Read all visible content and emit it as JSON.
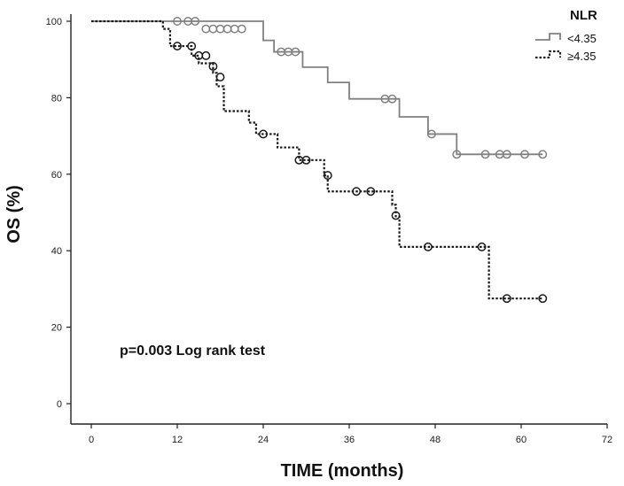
{
  "chart_data": {
    "type": "line",
    "subtype": "kaplan-meier",
    "title": "",
    "xlabel": "TIME (months)",
    "ylabel": "OS (%)",
    "xlim": [
      0,
      72
    ],
    "ylim": [
      0,
      100
    ],
    "xticks": [
      0,
      12,
      24,
      36,
      48,
      60,
      72
    ],
    "yticks": [
      0,
      20,
      40,
      60,
      80,
      100
    ],
    "grid": false,
    "legend": {
      "title": "NLR",
      "position": "top-right"
    },
    "annotation": "p=0.003 Log rank test",
    "series": [
      {
        "name": "<4.35",
        "color": "#808080",
        "line_style": "solid",
        "steps": [
          [
            0,
            100
          ],
          [
            24,
            95
          ],
          [
            25.5,
            92
          ],
          [
            29.5,
            88
          ],
          [
            33,
            84
          ],
          [
            36,
            79.7
          ],
          [
            43,
            75
          ],
          [
            47,
            70.5
          ],
          [
            51,
            65.2
          ],
          [
            63,
            65.2
          ]
        ],
        "censored": [
          [
            12,
            100
          ],
          [
            13.5,
            100
          ],
          [
            14.5,
            100
          ],
          [
            16,
            98
          ],
          [
            17,
            98
          ],
          [
            18,
            98
          ],
          [
            19,
            98
          ],
          [
            20,
            98
          ],
          [
            21,
            98
          ],
          [
            26.5,
            92
          ],
          [
            27.5,
            92
          ],
          [
            28.5,
            92
          ],
          [
            41,
            79.7
          ],
          [
            42,
            79.7
          ],
          [
            47.5,
            70.5
          ],
          [
            51,
            65.2
          ],
          [
            55,
            65.2
          ],
          [
            57,
            65.2
          ],
          [
            58,
            65.2
          ],
          [
            60.5,
            65.2
          ],
          [
            63,
            65.2
          ]
        ]
      },
      {
        "name": "≥4.35",
        "color": "#1a1a1a",
        "line_style": "dashed",
        "steps": [
          [
            0,
            100
          ],
          [
            10,
            98
          ],
          [
            11,
            93.5
          ],
          [
            14,
            91
          ],
          [
            15,
            89
          ],
          [
            17,
            86.5
          ],
          [
            17.5,
            83
          ],
          [
            18.5,
            76.5
          ],
          [
            22,
            73.5
          ],
          [
            23,
            70.5
          ],
          [
            26,
            67
          ],
          [
            29,
            63.7
          ],
          [
            32.5,
            59.7
          ],
          [
            33,
            55.5
          ],
          [
            42,
            52
          ],
          [
            42.5,
            49
          ],
          [
            43,
            41
          ],
          [
            55,
            41
          ],
          [
            55.5,
            27.5
          ],
          [
            63,
            27.5
          ]
        ],
        "censored": [
          [
            12,
            93.5
          ],
          [
            14,
            93.5
          ],
          [
            15,
            91
          ],
          [
            16,
            91
          ],
          [
            17,
            88.2
          ],
          [
            18,
            85.4
          ],
          [
            24,
            70.5
          ],
          [
            29,
            63.7
          ],
          [
            30,
            63.7
          ],
          [
            33,
            59.7
          ],
          [
            37,
            55.5
          ],
          [
            39,
            55.5
          ],
          [
            42.5,
            49.2
          ],
          [
            47,
            41
          ],
          [
            54.5,
            41
          ],
          [
            58,
            27.5
          ],
          [
            63,
            27.5
          ]
        ]
      }
    ]
  }
}
